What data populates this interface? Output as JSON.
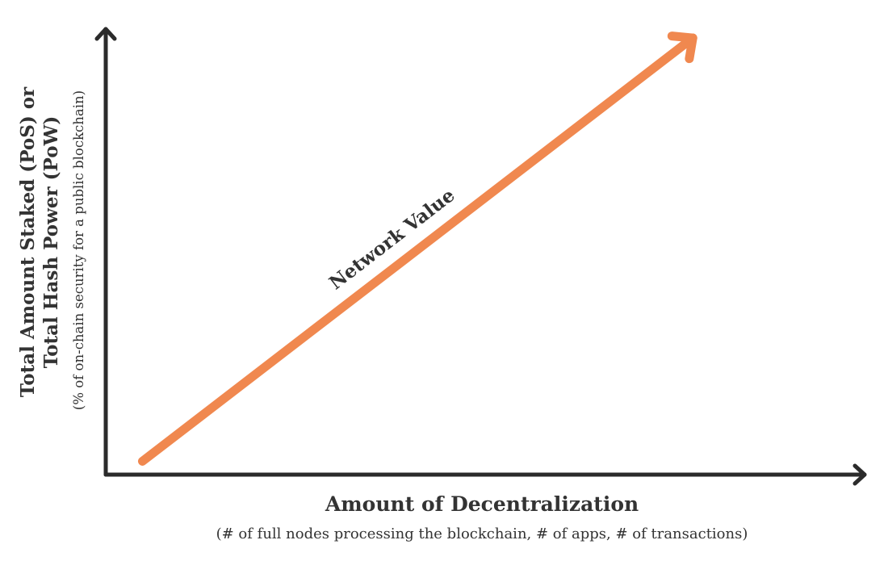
{
  "chart_data": {
    "type": "line",
    "title": "",
    "xlabel": "Amount of Decentralization",
    "xlabel_sub": "(# of full nodes processing the blockchain, # of apps, # of transactions)",
    "ylabel_lines": [
      "Total Amount Staked (PoS) or",
      "Total Hash Power (PoW)"
    ],
    "ylabel_sub": "(% of on-chain security for a public blockchain)",
    "series": [
      {
        "name": "Network Value",
        "color": "#f0884f",
        "x": [
          0.05,
          0.8
        ],
        "y": [
          0.03,
          0.98
        ]
      }
    ],
    "xlim": [
      0,
      1
    ],
    "ylim": [
      0,
      1
    ],
    "grid": false,
    "legend": "none",
    "axis_color": "#2b2b2b",
    "line_color": "#f0884f"
  }
}
